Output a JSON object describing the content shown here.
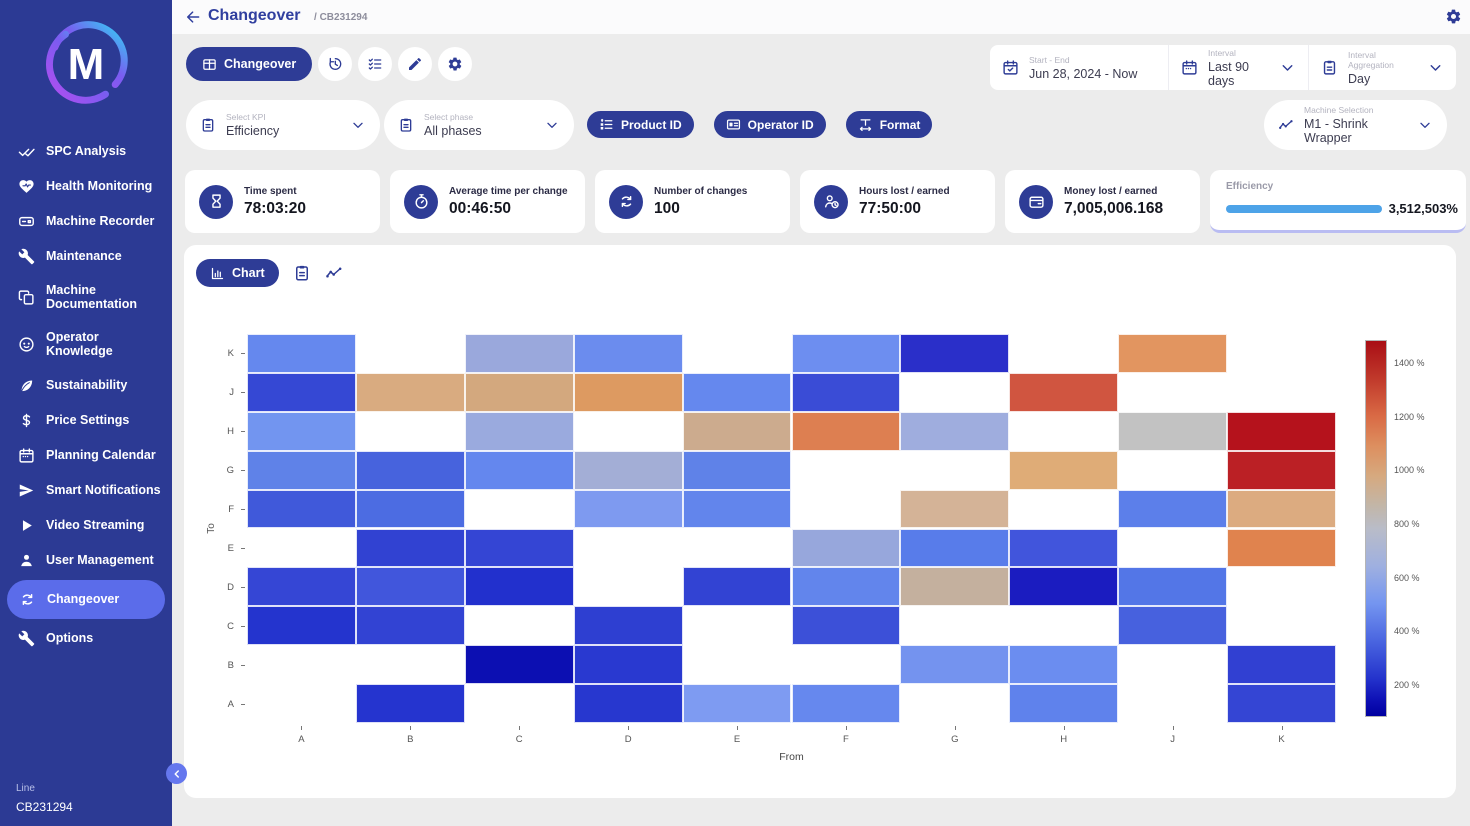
{
  "colors": {
    "sidebar_bg": "#2c3a94",
    "active_pill": "#5b6cea",
    "primary": "#2e3c96",
    "page_bg": "#ececec",
    "progress_blue": "#4da3e8",
    "selected_underline": "#b9bcf2",
    "logo_gradient_start": "#2fd5f5",
    "logo_gradient_end": "#b44df0"
  },
  "sidebar": {
    "logo_letter": "M",
    "items": [
      {
        "label": "SPC Analysis",
        "icon": "check-double",
        "active": false
      },
      {
        "label": "Health Monitoring",
        "icon": "heart-pulse",
        "active": false
      },
      {
        "label": "Machine Recorder",
        "icon": "video-recorder",
        "active": false
      },
      {
        "label": "Maintenance",
        "icon": "wrench",
        "active": false
      },
      {
        "label": "Machine Documentation",
        "icon": "copy-docs",
        "active": false
      },
      {
        "label": "Operator Knowledge",
        "icon": "face",
        "active": false
      },
      {
        "label": "Sustainability",
        "icon": "leaf",
        "active": false
      },
      {
        "label": "Price Settings",
        "icon": "dollar",
        "active": false
      },
      {
        "label": "Planning Calendar",
        "icon": "calendar",
        "active": false
      },
      {
        "label": "Smart Notifications",
        "icon": "send",
        "active": false
      },
      {
        "label": "Video Streaming",
        "icon": "play",
        "active": false
      },
      {
        "label": "User Management",
        "icon": "person",
        "active": false
      },
      {
        "label": "Changeover",
        "icon": "cycle",
        "active": true
      },
      {
        "label": "Options",
        "icon": "wrench",
        "active": false
      }
    ],
    "line_label": "Line",
    "line_value": "CB231294"
  },
  "header": {
    "title": "Changeover",
    "breadcrumb_prefix": "/",
    "breadcrumb": "CB231294"
  },
  "toolbar": {
    "view_button": "Changeover",
    "icon_buttons": [
      "history",
      "checklist",
      "pen",
      "gear"
    ],
    "date_range": {
      "label": "Start - End",
      "value": "Jun 28, 2024 - Now"
    },
    "interval": {
      "label": "Interval",
      "value": "Last 90 days"
    },
    "aggregation": {
      "label": "Interval Aggregation",
      "value": "Day"
    }
  },
  "filters": {
    "kpi": {
      "label": "Select KPI",
      "value": "Efficiency"
    },
    "phase": {
      "label": "Select phase",
      "value": "All phases"
    },
    "pills": [
      {
        "label": "Product ID",
        "icon": "list-number"
      },
      {
        "label": "Operator ID",
        "icon": "id-card"
      },
      {
        "label": "Format",
        "icon": "format-arrows"
      }
    ],
    "machine": {
      "label": "Machine Selection",
      "value": "M1 - Shrink Wrapper"
    }
  },
  "kpis": [
    {
      "label": "Time spent",
      "value": "78:03:20",
      "icon": "hourglass"
    },
    {
      "label": "Average time per change",
      "value": "00:46:50",
      "icon": "stopwatch"
    },
    {
      "label": "Number of changes",
      "value": "100",
      "icon": "cycle"
    },
    {
      "label": "Hours lost / earned",
      "value": "77:50:00",
      "icon": "person-clock"
    },
    {
      "label": "Money lost / earned",
      "value": "7,005,006.168",
      "icon": "wallet"
    }
  ],
  "efficiency_card": {
    "label": "Efficiency",
    "value": "3,512,503%"
  },
  "chart_panel": {
    "chart_button": "Chart",
    "icon_buttons": [
      "clipboard",
      "trend-line"
    ]
  },
  "chart_data": {
    "type": "heatmap",
    "title": "",
    "xlabel": "From",
    "ylabel": "To",
    "x_categories": [
      "A",
      "B",
      "C",
      "D",
      "E",
      "F",
      "G",
      "H",
      "J",
      "K"
    ],
    "y_categories": [
      "K",
      "J",
      "H",
      "G",
      "F",
      "E",
      "D",
      "C",
      "B",
      "A"
    ],
    "values_unit": "%",
    "values": [
      [
        560,
        null,
        700,
        580,
        null,
        580,
        270,
        null,
        1070,
        null
      ],
      [
        370,
        950,
        950,
        1030,
        560,
        390,
        null,
        1250,
        null,
        null
      ],
      [
        600,
        null,
        700,
        null,
        900,
        1150,
        700,
        null,
        800,
        1450
      ],
      [
        540,
        460,
        560,
        720,
        540,
        null,
        null,
        970,
        null,
        1400
      ],
      [
        420,
        480,
        null,
        620,
        560,
        null,
        880,
        null,
        540,
        950
      ],
      [
        null,
        340,
        360,
        null,
        null,
        700,
        520,
        430,
        null,
        1120
      ],
      [
        370,
        430,
        280,
        null,
        350,
        560,
        860,
        200,
        500,
        null
      ],
      [
        290,
        350,
        null,
        330,
        null,
        400,
        null,
        null,
        460,
        null
      ],
      [
        null,
        null,
        150,
        310,
        null,
        null,
        600,
        580,
        null,
        340
      ],
      [
        null,
        295,
        null,
        300,
        620,
        560,
        null,
        540,
        null,
        360
      ]
    ],
    "cell_colors": [
      [
        "#6588ee",
        null,
        "#9aa8dc",
        "#6b8cee",
        null,
        "#6d8ef0",
        "#2a2fc9",
        null,
        "#e29560",
        null
      ],
      [
        "#3548d4",
        "#d9ab80",
        "#d3a87e",
        "#dd9a61",
        "#6588ee",
        "#3a4cd6",
        null,
        "#d05540",
        null,
        null
      ],
      [
        "#7295f0",
        null,
        "#9aaade",
        null,
        "#ccab8e",
        "#dd7f51",
        "#9fadde",
        null,
        "#c2c2c2",
        "#b5121c"
      ],
      [
        "#5f82e8",
        "#4763dd",
        "#6487ee",
        "#a3aed6",
        "#5f82e8",
        null,
        null,
        "#dfac77",
        null,
        "#bb2025"
      ],
      [
        "#4059da",
        "#4c6ce2",
        null,
        "#7e9af0",
        "#6285ec",
        null,
        "#d4b397",
        null,
        "#5c7fea",
        "#dcab80"
      ],
      [
        null,
        "#3142d2",
        "#3445d4",
        null,
        null,
        "#97a7dc",
        "#587cea",
        "#4155dc",
        null,
        "#e0834e"
      ],
      [
        "#3546d5",
        "#4156dc",
        "#2230cd",
        null,
        "#3243d3",
        "#6285ec",
        "#c4b09e",
        "#1b1cc0",
        "#5376e7",
        null
      ],
      [
        "#2434ce",
        "#3243d3",
        null,
        "#2e3fd1",
        null,
        "#3c50d8",
        null,
        null,
        "#4761de",
        null
      ],
      [
        null,
        null,
        "#0c0fb2",
        "#2939d0",
        null,
        null,
        "#7493ef",
        "#6b8df0",
        null,
        "#3140d2"
      ],
      [
        null,
        "#2534cf",
        null,
        "#2737cf",
        "#7e9bf2",
        "#6688ee",
        null,
        "#5f82ec",
        null,
        "#3445d4"
      ]
    ],
    "colorbar": {
      "ticks": [
        "1400 %",
        "1200 %",
        "1000 %",
        "800 %",
        "600 %",
        "400 %",
        "200 %"
      ],
      "range": [
        100,
        1500
      ],
      "gradient": [
        [
          "#a90e15",
          "0%"
        ],
        [
          "#c0392b",
          "10%"
        ],
        [
          "#d96a45",
          "20%"
        ],
        [
          "#dd8f5f",
          "28%"
        ],
        [
          "#d6a97f",
          "36%"
        ],
        [
          "#c2b6a8",
          "44%"
        ],
        [
          "#b9bcc8",
          "50%"
        ],
        [
          "#9fb0e0",
          "60%"
        ],
        [
          "#7495f0",
          "70%"
        ],
        [
          "#4a65e0",
          "80%"
        ],
        [
          "#2433cc",
          "90%"
        ],
        [
          "#0d0fb4",
          "96%"
        ],
        [
          "#0000a0",
          "100%"
        ]
      ]
    }
  }
}
